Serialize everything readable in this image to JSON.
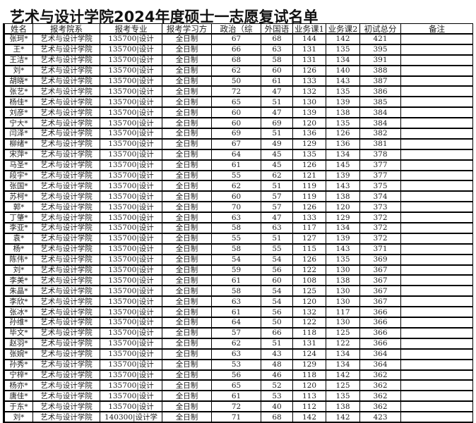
{
  "title": "艺术与设计学院2024年度硕士一志愿复试名单",
  "table": {
    "headers": [
      "姓名",
      "报考院系",
      "报考专业",
      "报考学习方",
      "政治（综",
      "外国语",
      "业务课1",
      "业务课2",
      "初试总分",
      "备注"
    ],
    "rows": [
      [
        "张珂*",
        "艺术与设计学院",
        "135700|设计",
        "全日制",
        "67",
        "68",
        "144",
        "142",
        "421",
        ""
      ],
      [
        "王*",
        "艺术与设计学院",
        "135700|设计",
        "全日制",
        "66",
        "63",
        "131",
        "135",
        "395",
        ""
      ],
      [
        "王洁*",
        "艺术与设计学院",
        "135700|设计",
        "全日制",
        "68",
        "58",
        "131",
        "134",
        "391",
        ""
      ],
      [
        "刘*",
        "艺术与设计学院",
        "135700|设计",
        "全日制",
        "62",
        "60",
        "126",
        "140",
        "388",
        ""
      ],
      [
        "胡晓*",
        "艺术与设计学院",
        "135700|设计",
        "全日制",
        "50",
        "61",
        "133",
        "143",
        "387",
        ""
      ],
      [
        "张艺*",
        "艺术与设计学院",
        "135700|设计",
        "全日制",
        "72",
        "47",
        "132",
        "135",
        "386",
        ""
      ],
      [
        "杨佳*",
        "艺术与设计学院",
        "135700|设计",
        "全日制",
        "65",
        "51",
        "130",
        "139",
        "385",
        ""
      ],
      [
        "刘彦*",
        "艺术与设计学院",
        "135700|设计",
        "全日制",
        "60",
        "47",
        "139",
        "138",
        "384",
        ""
      ],
      [
        "宁大*",
        "艺术与设计学院",
        "135700|设计",
        "全日制",
        "60",
        "69",
        "120",
        "135",
        "384",
        ""
      ],
      [
        "闫泽*",
        "艺术与设计学院",
        "135700|设计",
        "全日制",
        "69",
        "51",
        "136",
        "126",
        "382",
        ""
      ],
      [
        "柳绪*",
        "艺术与设计学院",
        "135700|设计",
        "全日制",
        "67",
        "49",
        "129",
        "136",
        "381",
        ""
      ],
      [
        "宋萍*",
        "艺术与设计学院",
        "135700|设计",
        "全日制",
        "64",
        "45",
        "135",
        "134",
        "378",
        ""
      ],
      [
        "马圣*",
        "艺术与设计学院",
        "135700|设计",
        "全日制",
        "61",
        "45",
        "126",
        "145",
        "377",
        ""
      ],
      [
        "段宇*",
        "艺术与设计学院",
        "135700|设计",
        "全日制",
        "55",
        "62",
        "121",
        "139",
        "377",
        ""
      ],
      [
        "张国*",
        "艺术与设计学院",
        "135700|设计",
        "全日制",
        "62",
        "51",
        "119",
        "143",
        "375",
        ""
      ],
      [
        "苏柯*",
        "艺术与设计学院",
        "135700|设计",
        "全日制",
        "60",
        "57",
        "119",
        "138",
        "374",
        ""
      ],
      [
        "郭*",
        "艺术与设计学院",
        "135700|设计",
        "全日制",
        "70",
        "57",
        "126",
        "120",
        "373",
        ""
      ],
      [
        "丁肇*",
        "艺术与设计学院",
        "135700|设计",
        "全日制",
        "63",
        "47",
        "133",
        "129",
        "372",
        ""
      ],
      [
        "李亚*",
        "艺术与设计学院",
        "135700|设计",
        "全日制",
        "58",
        "63",
        "117",
        "134",
        "372",
        ""
      ],
      [
        "袁*",
        "艺术与设计学院",
        "135700|设计",
        "全日制",
        "55",
        "51",
        "127",
        "139",
        "372",
        ""
      ],
      [
        "杨*",
        "艺术与设计学院",
        "135700|设计",
        "全日制",
        "58",
        "55",
        "115",
        "143",
        "371",
        ""
      ],
      [
        "陈伟*",
        "艺术与设计学院",
        "135700|设计",
        "全日制",
        "54",
        "54",
        "126",
        "135",
        "369",
        ""
      ],
      [
        "刘*",
        "艺术与设计学院",
        "135700|设计",
        "全日制",
        "59",
        "56",
        "122",
        "130",
        "367",
        ""
      ],
      [
        "李美*",
        "艺术与设计学院",
        "135700|设计",
        "全日制",
        "61",
        "60",
        "108",
        "138",
        "367",
        ""
      ],
      [
        "朱晶*",
        "艺术与设计学院",
        "135700|设计",
        "全日制",
        "58",
        "54",
        "125",
        "130",
        "367",
        ""
      ],
      [
        "李欣*",
        "艺术与设计学院",
        "135700|设计",
        "全日制",
        "63",
        "54",
        "120",
        "130",
        "367",
        ""
      ],
      [
        "张冰*",
        "艺术与设计学院",
        "135700|设计",
        "全日制",
        "61",
        "56",
        "132",
        "117",
        "366",
        ""
      ],
      [
        "孙维*",
        "艺术与设计学院",
        "135700|设计",
        "全日制",
        "64",
        "50",
        "122",
        "130",
        "366",
        ""
      ],
      [
        "毕文*",
        "艺术与设计学院",
        "135700|设计",
        "全日制",
        "57",
        "66",
        "118",
        "125",
        "366",
        ""
      ],
      [
        "赵羽*",
        "艺术与设计学院",
        "135700|设计",
        "全日制",
        "62",
        "51",
        "131",
        "122",
        "366",
        ""
      ],
      [
        "张婉*",
        "艺术与设计学院",
        "135700|设计",
        "全日制",
        "63",
        "43",
        "124",
        "134",
        "364",
        ""
      ],
      [
        "孙秀*",
        "艺术与设计学院",
        "135700|设计",
        "全日制",
        "53",
        "48",
        "129",
        "134",
        "364",
        ""
      ],
      [
        "宁梓*",
        "艺术与设计学院",
        "135700|设计",
        "全日制",
        "56",
        "46",
        "118",
        "142",
        "362",
        ""
      ],
      [
        "杨亦*",
        "艺术与设计学院",
        "135700|设计",
        "全日制",
        "65",
        "52",
        "120",
        "125",
        "362",
        ""
      ],
      [
        "唐佳*",
        "艺术与设计学院",
        "135700|设计",
        "全日制",
        "61",
        "53",
        "113",
        "135",
        "362",
        ""
      ],
      [
        "于东*",
        "艺术与设计学院",
        "135700|设计",
        "全日制",
        "72",
        "40",
        "112",
        "138",
        "362",
        ""
      ],
      [
        "刘*",
        "艺术与设计学院",
        "140300|设计学",
        "全日制",
        "71",
        "68",
        "142",
        "142",
        "423",
        ""
      ]
    ]
  }
}
